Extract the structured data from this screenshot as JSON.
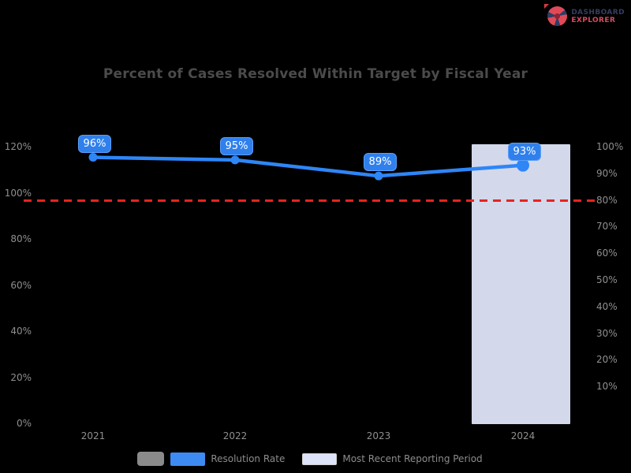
{
  "logo": {
    "line1": "DASHBOARD",
    "line2": "EXPLORER"
  },
  "title": "Percent of Cases Resolved Within Target by Fiscal Year",
  "chart_data": {
    "type": "line",
    "title": "Percent of Cases Resolved Within Target by Fiscal Year",
    "categories": [
      "2021",
      "2022",
      "2023",
      "2024"
    ],
    "series": [
      {
        "name": "Resolution Rate",
        "values": [
          96,
          95,
          89,
          93
        ],
        "color": "#2e86f7"
      }
    ],
    "data_labels": [
      "96%",
      "95%",
      "89%",
      "93%"
    ],
    "target_line": {
      "value": 80,
      "color": "#e8231f",
      "style": "dashed"
    },
    "highlight_band": {
      "category": "2024",
      "color": "#dee4f8"
    },
    "y_axis_left": {
      "ticks": [
        "120%",
        "100%",
        "80%",
        "60%",
        "40%",
        "20%",
        "0%"
      ]
    },
    "y_axis_right": {
      "ticks": [
        "100%",
        "90%",
        "80%",
        "70%",
        "60%",
        "50%",
        "40%",
        "30%",
        "20%",
        "10%"
      ]
    },
    "grid": false,
    "legend_position": "bottom",
    "background": "#000000"
  },
  "legend": {
    "items": [
      {
        "label": "Resolution Rate",
        "color": "#3d8bf2"
      },
      {
        "label": "Most Recent Reporting Period",
        "color": "#dde3f8"
      }
    ]
  },
  "colors": {
    "line": "#2e86f7",
    "chip": "#2f80ed",
    "target": "#e8231f",
    "band": "#dee4f8",
    "axis_text": "#8f8f8f",
    "title_text": "#4b4b4b"
  }
}
